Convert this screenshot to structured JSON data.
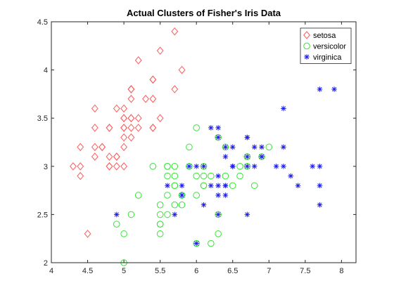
{
  "chart_data": {
    "type": "scatter",
    "title": "Actual Clusters of Fisher's Iris Data",
    "xlabel": "",
    "ylabel": "",
    "xlim": [
      4,
      8.2
    ],
    "ylim": [
      2,
      4.5
    ],
    "xticks": [
      4,
      4.5,
      5,
      5.5,
      6,
      6.5,
      7,
      7.5,
      8
    ],
    "xtick_labels": [
      "4",
      "4.5",
      "5",
      "5.5",
      "6",
      "6.5",
      "7",
      "7.5",
      "8"
    ],
    "yticks": [
      2,
      2.5,
      3,
      3.5,
      4,
      4.5
    ],
    "ytick_labels": [
      "2",
      "2.5",
      "3",
      "3.5",
      "4",
      "4.5"
    ],
    "grid": false,
    "legend_position": "top-right",
    "series": [
      {
        "name": "setosa",
        "marker": "diamond",
        "color": "#ff5a5a",
        "points": [
          [
            5.1,
            3.5
          ],
          [
            4.9,
            3.0
          ],
          [
            4.7,
            3.2
          ],
          [
            4.6,
            3.1
          ],
          [
            5.0,
            3.6
          ],
          [
            5.4,
            3.9
          ],
          [
            4.6,
            3.4
          ],
          [
            5.0,
            3.4
          ],
          [
            4.4,
            2.9
          ],
          [
            4.9,
            3.1
          ],
          [
            5.4,
            3.7
          ],
          [
            4.8,
            3.4
          ],
          [
            4.8,
            3.0
          ],
          [
            4.3,
            3.0
          ],
          [
            5.8,
            4.0
          ],
          [
            5.7,
            4.4
          ],
          [
            5.4,
            3.9
          ],
          [
            5.1,
            3.5
          ],
          [
            5.7,
            3.8
          ],
          [
            5.1,
            3.8
          ],
          [
            5.4,
            3.4
          ],
          [
            5.1,
            3.7
          ],
          [
            4.6,
            3.6
          ],
          [
            5.1,
            3.3
          ],
          [
            4.8,
            3.4
          ],
          [
            5.0,
            3.0
          ],
          [
            5.0,
            3.4
          ],
          [
            5.2,
            3.5
          ],
          [
            5.2,
            3.4
          ],
          [
            4.7,
            3.2
          ],
          [
            4.8,
            3.1
          ],
          [
            5.4,
            3.4
          ],
          [
            5.2,
            4.1
          ],
          [
            5.5,
            4.2
          ],
          [
            4.9,
            3.1
          ],
          [
            5.0,
            3.2
          ],
          [
            5.5,
            3.5
          ],
          [
            4.9,
            3.6
          ],
          [
            4.4,
            3.0
          ],
          [
            5.1,
            3.4
          ],
          [
            5.0,
            3.5
          ],
          [
            4.5,
            2.3
          ],
          [
            4.4,
            3.2
          ],
          [
            5.0,
            3.5
          ],
          [
            5.1,
            3.8
          ],
          [
            4.8,
            3.0
          ],
          [
            5.1,
            3.8
          ],
          [
            4.6,
            3.2
          ],
          [
            5.3,
            3.7
          ],
          [
            5.0,
            3.3
          ]
        ]
      },
      {
        "name": "versicolor",
        "marker": "circle",
        "color": "#33e633",
        "points": [
          [
            7.0,
            3.2
          ],
          [
            6.4,
            3.2
          ],
          [
            6.9,
            3.1
          ],
          [
            5.5,
            2.3
          ],
          [
            6.5,
            2.8
          ],
          [
            5.7,
            2.8
          ],
          [
            6.3,
            3.3
          ],
          [
            4.9,
            2.4
          ],
          [
            6.6,
            2.9
          ],
          [
            5.2,
            2.7
          ],
          [
            5.0,
            2.0
          ],
          [
            5.9,
            3.0
          ],
          [
            6.0,
            2.2
          ],
          [
            6.1,
            2.9
          ],
          [
            5.6,
            2.9
          ],
          [
            6.7,
            3.1
          ],
          [
            5.6,
            3.0
          ],
          [
            5.8,
            2.7
          ],
          [
            6.2,
            2.2
          ],
          [
            5.6,
            2.5
          ],
          [
            5.9,
            3.2
          ],
          [
            6.1,
            2.8
          ],
          [
            6.3,
            2.5
          ],
          [
            6.1,
            2.8
          ],
          [
            6.4,
            2.9
          ],
          [
            6.6,
            3.0
          ],
          [
            6.8,
            2.8
          ],
          [
            6.7,
            3.0
          ],
          [
            6.0,
            2.9
          ],
          [
            5.7,
            2.6
          ],
          [
            5.5,
            2.4
          ],
          [
            5.5,
            2.4
          ],
          [
            5.8,
            2.7
          ],
          [
            6.0,
            2.7
          ],
          [
            5.4,
            3.0
          ],
          [
            6.0,
            3.4
          ],
          [
            6.7,
            3.1
          ],
          [
            6.3,
            2.3
          ],
          [
            5.6,
            3.0
          ],
          [
            5.5,
            2.5
          ],
          [
            5.5,
            2.6
          ],
          [
            6.1,
            3.0
          ],
          [
            5.8,
            2.6
          ],
          [
            5.0,
            2.3
          ],
          [
            5.6,
            2.7
          ],
          [
            5.7,
            3.0
          ],
          [
            5.7,
            2.9
          ],
          [
            6.2,
            2.9
          ],
          [
            5.1,
            2.5
          ],
          [
            5.7,
            2.8
          ]
        ]
      },
      {
        "name": "virginica",
        "marker": "asterisk",
        "color": "#1f1fe6",
        "points": [
          [
            6.3,
            3.3
          ],
          [
            5.8,
            2.7
          ],
          [
            7.1,
            3.0
          ],
          [
            6.3,
            2.9
          ],
          [
            6.5,
            3.0
          ],
          [
            7.6,
            3.0
          ],
          [
            4.9,
            2.5
          ],
          [
            7.3,
            2.9
          ],
          [
            6.7,
            2.5
          ],
          [
            7.2,
            3.6
          ],
          [
            6.5,
            3.2
          ],
          [
            6.4,
            2.7
          ],
          [
            6.8,
            3.0
          ],
          [
            5.7,
            2.5
          ],
          [
            5.8,
            2.8
          ],
          [
            6.4,
            3.2
          ],
          [
            6.5,
            3.0
          ],
          [
            7.7,
            3.8
          ],
          [
            7.7,
            2.6
          ],
          [
            6.0,
            2.2
          ],
          [
            6.9,
            3.2
          ],
          [
            5.6,
            2.8
          ],
          [
            7.7,
            2.8
          ],
          [
            6.3,
            2.7
          ],
          [
            6.7,
            3.3
          ],
          [
            7.2,
            3.2
          ],
          [
            6.2,
            2.8
          ],
          [
            6.1,
            3.0
          ],
          [
            6.4,
            2.8
          ],
          [
            7.2,
            3.0
          ],
          [
            7.4,
            2.8
          ],
          [
            7.9,
            3.8
          ],
          [
            6.4,
            2.8
          ],
          [
            6.3,
            2.8
          ],
          [
            6.1,
            2.6
          ],
          [
            7.7,
            3.0
          ],
          [
            6.3,
            3.4
          ],
          [
            6.4,
            3.1
          ],
          [
            6.0,
            3.0
          ],
          [
            6.9,
            3.1
          ],
          [
            6.7,
            3.1
          ],
          [
            6.9,
            3.1
          ],
          [
            5.8,
            2.7
          ],
          [
            6.8,
            3.2
          ],
          [
            6.7,
            3.3
          ],
          [
            6.7,
            3.0
          ],
          [
            6.3,
            2.5
          ],
          [
            6.5,
            3.0
          ],
          [
            6.2,
            3.4
          ],
          [
            5.9,
            3.0
          ]
        ]
      }
    ]
  }
}
